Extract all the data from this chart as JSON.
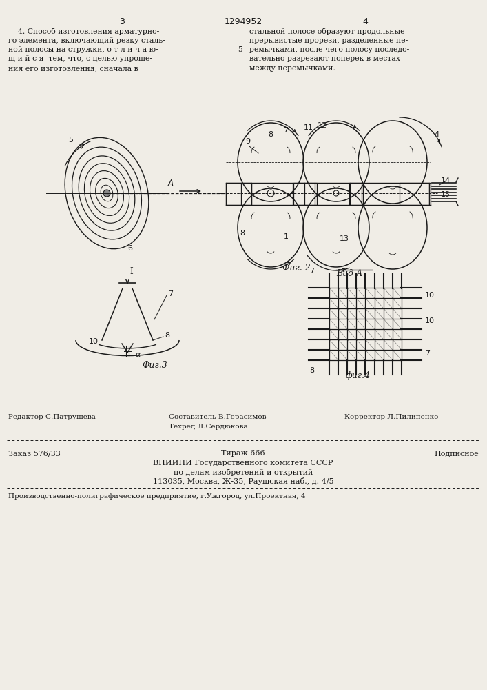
{
  "bg_color": "#f0ede6",
  "page_number_left": "3",
  "page_number_center": "1294952",
  "page_number_right": "4",
  "text_col1_lines": [
    "    4. Способ изготовления арматурно-",
    "го элемента, включающий резку сталь-",
    "ной полосы на стружки, о т л и ч а ю-",
    "щ и й с я  тем, что, с целью упроще-",
    "ния его изготовления, сначала в"
  ],
  "text_col2_header": "5",
  "text_col2_lines": [
    "стальной полосе образуют продольные",
    "прерывистые прорези, разделенные пе-",
    "ремычками, после чего полосу последо-",
    "вательно разрезают поперек в местах",
    "между перемычками."
  ],
  "fig2_caption": "Фиг. 2",
  "fig3_caption": "Фиг.3",
  "fig4_caption": "фиг.4",
  "vid_a_label": "Вид А",
  "editor_line": "Редактор С.Патрушева",
  "composer_line": "Составитель В.Герасимов",
  "techred_line": "Техред Л.Сердюкова",
  "corrector_line": "Корректор Л.Пилипенко",
  "order_line": "Заказ 576/33",
  "tirazh_line": "Тираж 666",
  "podpisnoe_line": "Подписное",
  "vniiipi_line": "ВНИИПИ Государственного комитета СССР",
  "po_delam_line": "по делам изобретений и открытий",
  "address_line": "113035, Москва, Ж-35, Раушская наб., д. 4/5",
  "factory_line": "Производственно-полиграфическое предприятие, г.Ужгород, ул.Проектная, 4"
}
